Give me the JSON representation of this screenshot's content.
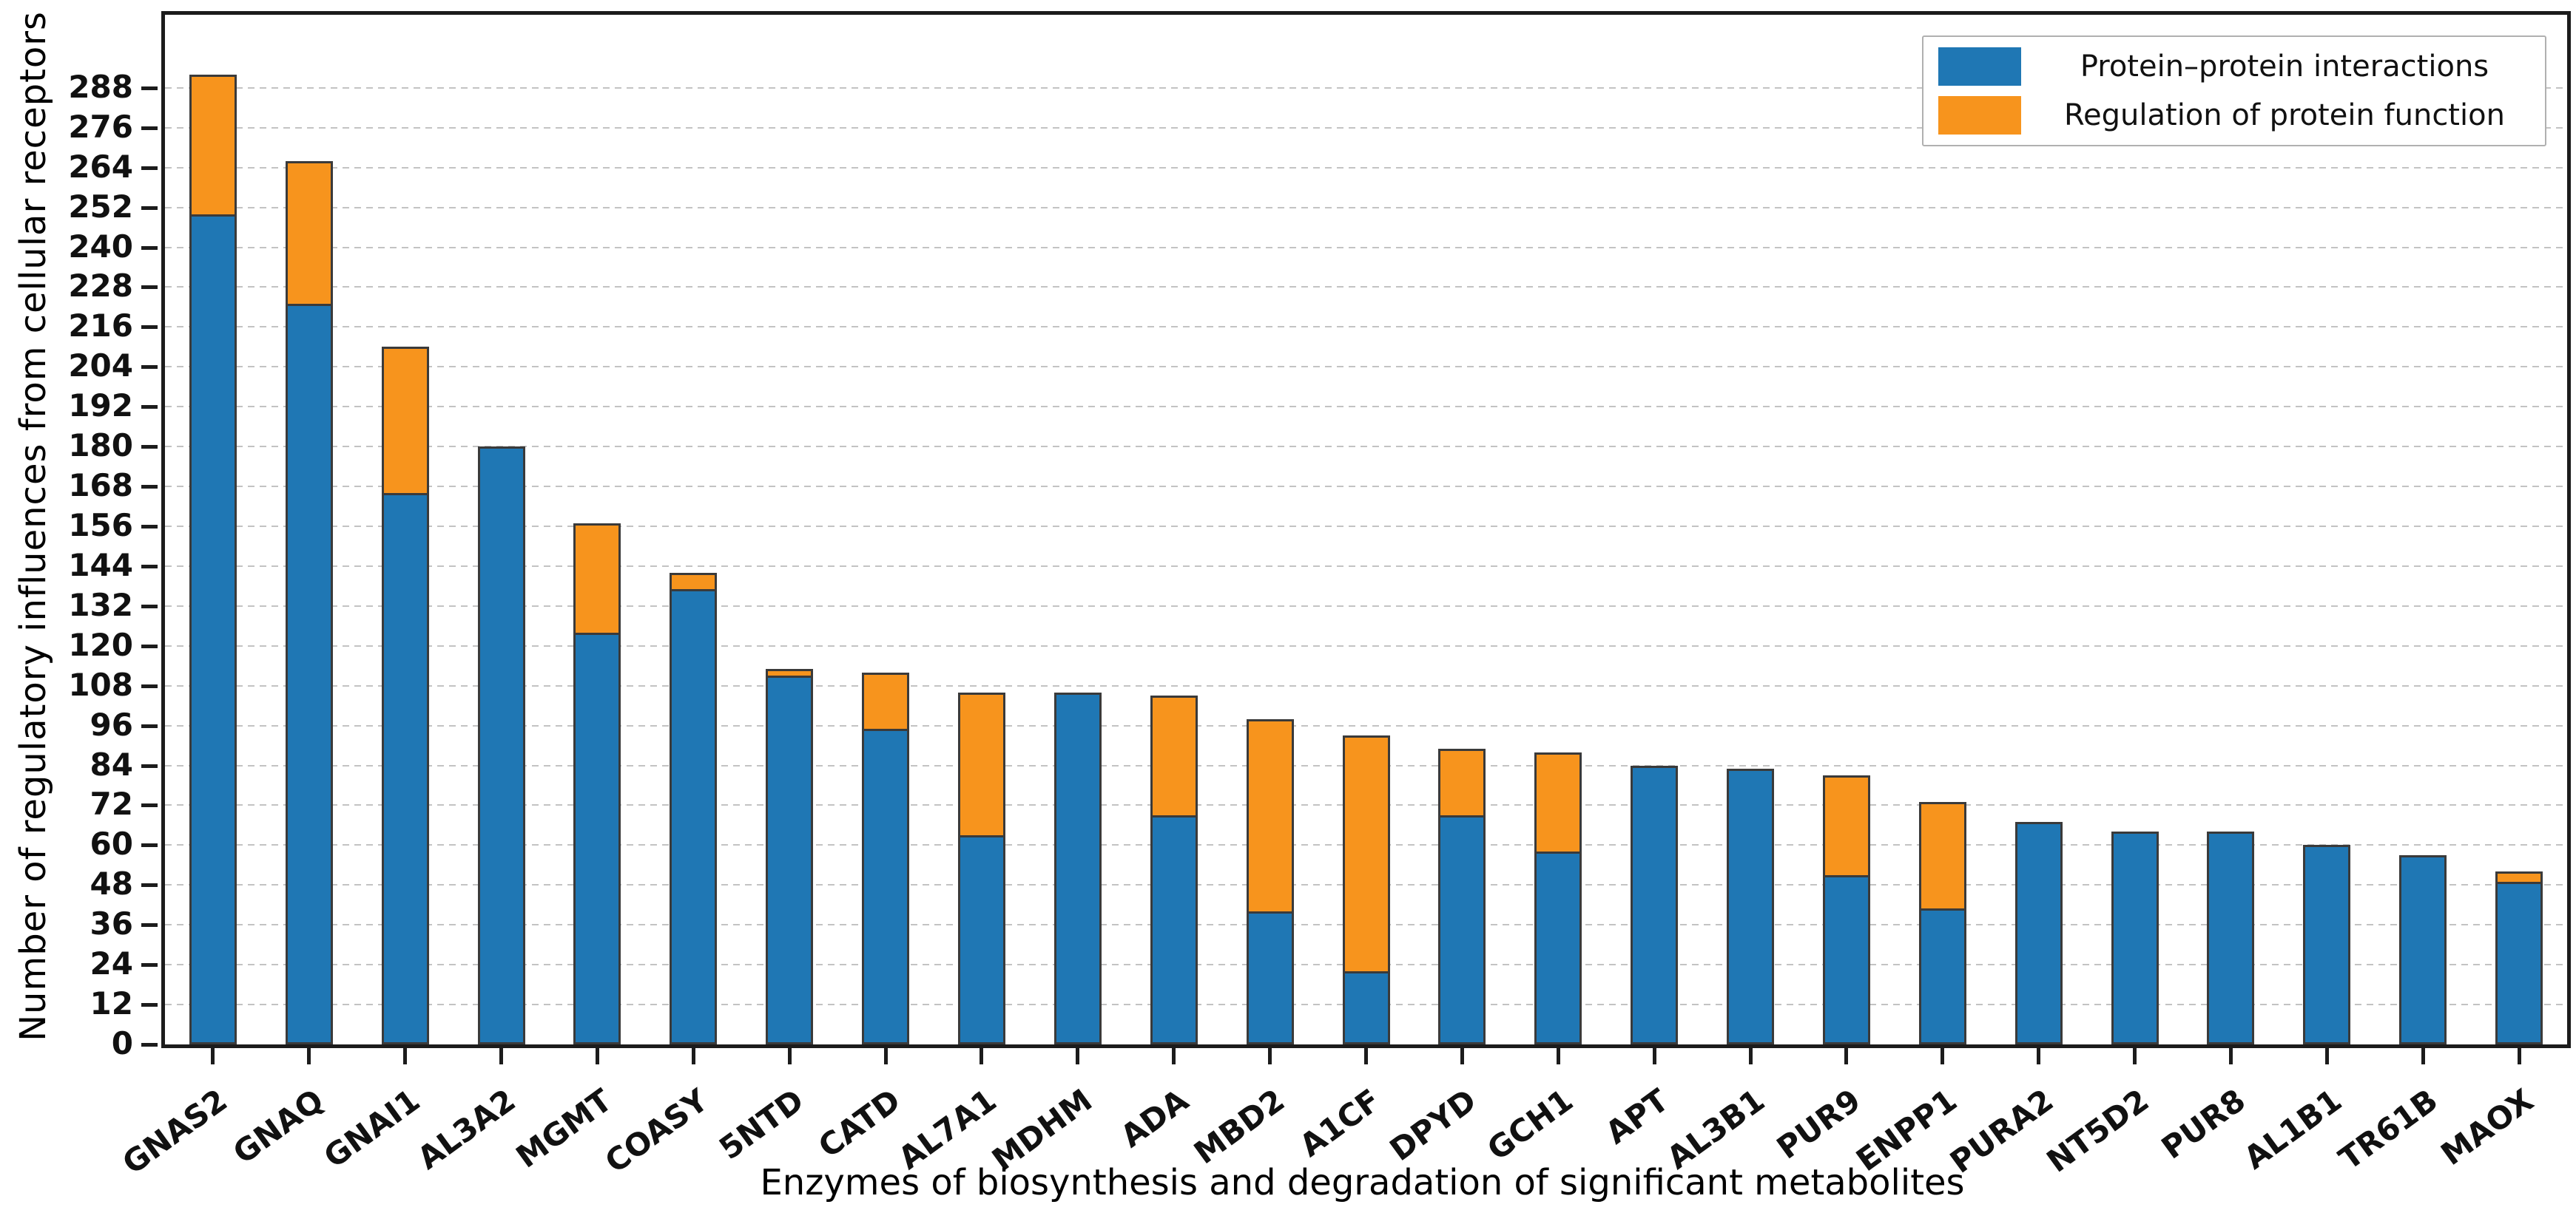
{
  "chart_data": {
    "type": "bar",
    "stacked": true,
    "title": "",
    "xlabel": "Enzymes of biosynthesis and degradation of significant metabolites",
    "ylabel": "Number of regulatory influences from cellular receptors",
    "categories": [
      "GNAS2",
      "GNAQ",
      "GNAI1",
      "AL3A2",
      "MGMT",
      "COASY",
      "5NTD",
      "CATD",
      "AL7A1",
      "MDHM",
      "ADA",
      "MBD2",
      "A1CF",
      "DPYD",
      "GCH1",
      "APT",
      "AL3B1",
      "PUR9",
      "ENPP1",
      "PURA2",
      "NT5D2",
      "PUR8",
      "AL1B1",
      "TR61B",
      "MAOX"
    ],
    "series": [
      {
        "name": "Protein–protein interactions",
        "color": "#1f77b4",
        "values": [
          250,
          223,
          166,
          180,
          124,
          137,
          111,
          95,
          63,
          106,
          69,
          40,
          22,
          69,
          58,
          84,
          83,
          51,
          41,
          67,
          64,
          64,
          60,
          57,
          49
        ]
      },
      {
        "name": "Regulation of protein function",
        "color": "#f7941d",
        "values": [
          42,
          43,
          44,
          0,
          33,
          5,
          2,
          17,
          43,
          0,
          36,
          58,
          71,
          20,
          30,
          0,
          0,
          30,
          32,
          0,
          0,
          0,
          0,
          0,
          3
        ]
      }
    ],
    "totals": [
      292,
      266,
      210,
      180,
      157,
      142,
      113,
      112,
      106,
      106,
      105,
      98,
      93,
      89,
      88,
      84,
      83,
      81,
      73,
      67,
      64,
      64,
      60,
      57,
      52
    ],
    "ylim": [
      0,
      310
    ],
    "yticks": [
      0,
      12,
      24,
      36,
      48,
      60,
      72,
      84,
      96,
      108,
      120,
      132,
      144,
      156,
      168,
      180,
      192,
      204,
      216,
      228,
      240,
      252,
      264,
      276,
      288
    ],
    "grid": "horizontal-dashed",
    "legend_position": "upper-right",
    "bar_edge_color": "#3a3a3a"
  }
}
